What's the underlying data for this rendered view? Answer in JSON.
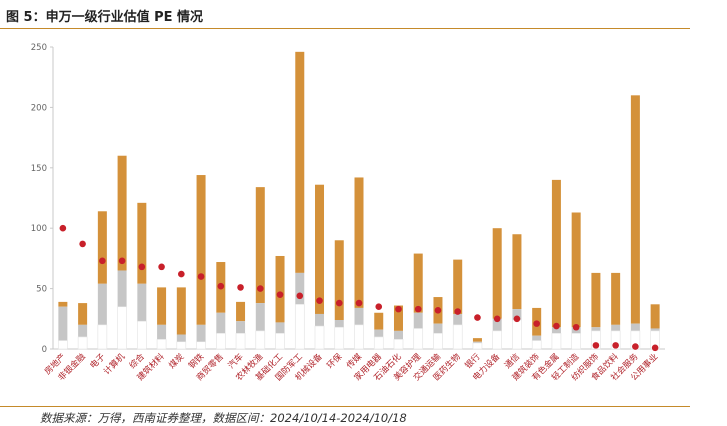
{
  "header": {
    "title": "图 5：申万一级行业估值 PE 情况"
  },
  "footer": {
    "source": "数据来源：万得，西南证券整理，数据区间：2024/10/14-2024/10/18"
  },
  "colors": {
    "range_bar": "#d4913a",
    "band_bar": "#c6c6c6",
    "dot": "#c8202a",
    "axis": "#c9c9c9"
  },
  "chart_data": {
    "type": "bar",
    "title": "图 5：申万一级行业估值 PE 情况",
    "xlabel": "",
    "ylabel": "",
    "ylim": [
      0,
      250
    ],
    "yticks": [
      0,
      50,
      100,
      150,
      200,
      250
    ],
    "grid": false,
    "legend": "none",
    "categories": [
      "房地产",
      "非银金融",
      "电子",
      "计算机",
      "综合",
      "建筑材料",
      "煤炭",
      "钢铁",
      "商贸零售",
      "汽车",
      "农林牧渔",
      "基础化工",
      "国防军工",
      "机械设备",
      "环保",
      "传媒",
      "家用电器",
      "石油石化",
      "美容护理",
      "交通运输",
      "医药生物",
      "银行",
      "电力设备",
      "通信",
      "建筑装饰",
      "有色金属",
      "轻工制造",
      "纺织服饰",
      "食品饮料",
      "社会服务",
      "公用事业"
    ],
    "series": [
      {
        "name": "",
        "kind": "min",
        "values": [
          7,
          10,
          20,
          35,
          23,
          8,
          6,
          6,
          13,
          13,
          15,
          13,
          37,
          19,
          18,
          20,
          10,
          8,
          17,
          13,
          20,
          5,
          15,
          24,
          7,
          13,
          13,
          15,
          15,
          15,
          15
        ]
      },
      {
        "name": "",
        "kind": "band_low",
        "values": [
          7,
          10,
          20,
          35,
          23,
          8,
          6,
          6,
          13,
          13,
          15,
          13,
          37,
          19,
          18,
          20,
          10,
          8,
          17,
          13,
          20,
          5,
          15,
          24,
          7,
          13,
          13,
          15,
          15,
          15,
          15
        ]
      },
      {
        "name": "",
        "kind": "band_high",
        "values": [
          35,
          20,
          54,
          65,
          54,
          20,
          12,
          20,
          30,
          23,
          38,
          22,
          63,
          29,
          24,
          34,
          16,
          15,
          30,
          21,
          29,
          6,
          25,
          33,
          11,
          18,
          18,
          18,
          20,
          21,
          17
        ]
      },
      {
        "name": "",
        "kind": "max",
        "values": [
          39,
          38,
          114,
          160,
          121,
          51,
          51,
          144,
          72,
          39,
          134,
          77,
          246,
          136,
          90,
          142,
          30,
          36,
          79,
          43,
          74,
          9,
          100,
          95,
          34,
          140,
          113,
          63,
          63,
          210,
          37
        ]
      },
      {
        "name": "",
        "kind": "current",
        "values": [
          100,
          87,
          73,
          73,
          68,
          68,
          62,
          60,
          52,
          51,
          50,
          45,
          44,
          40,
          38,
          38,
          35,
          33,
          33,
          32,
          31,
          26,
          25,
          25,
          21,
          19,
          18,
          3,
          3,
          2,
          1
        ]
      }
    ]
  }
}
